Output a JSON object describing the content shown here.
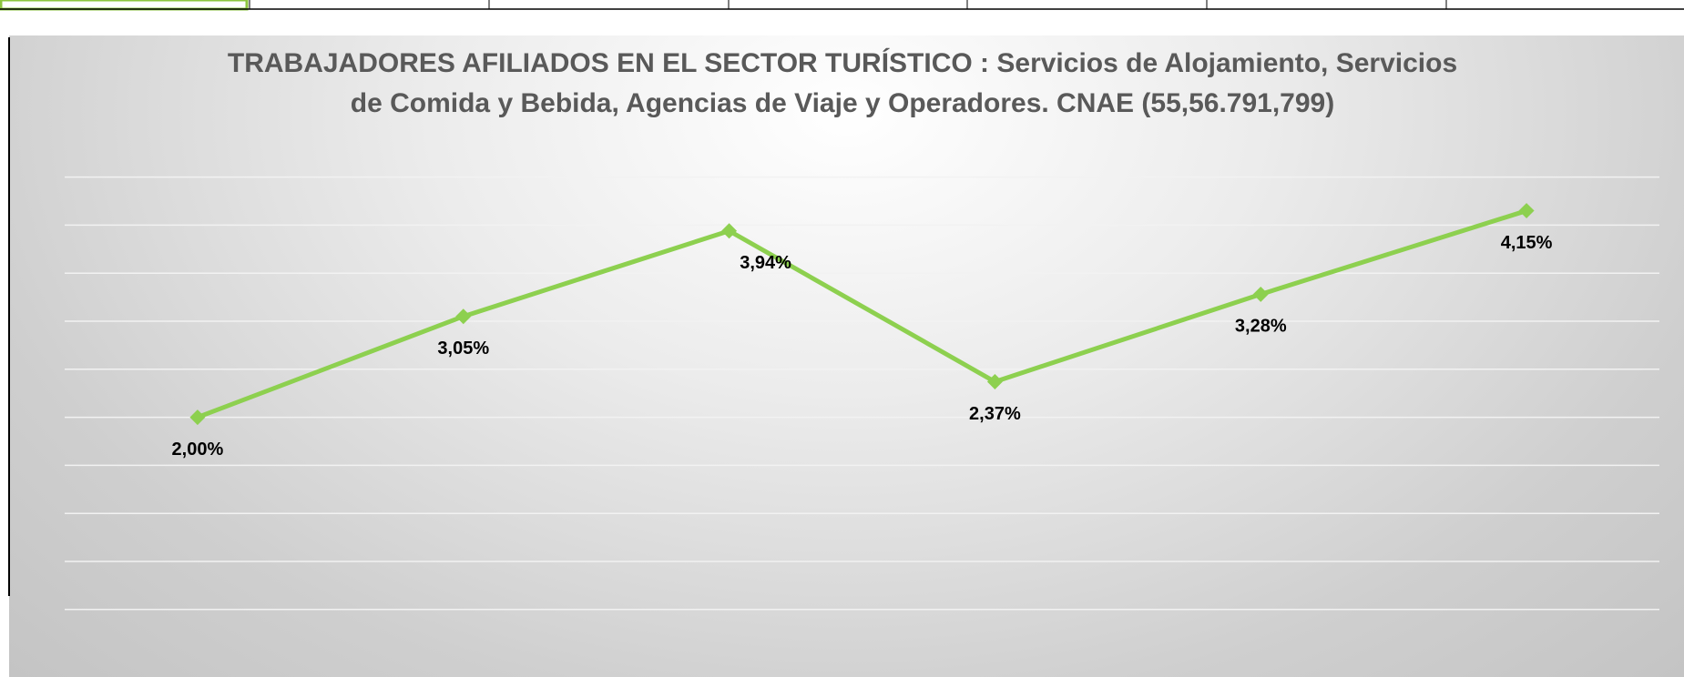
{
  "chart_data": {
    "type": "line",
    "title": "TRABAJADORES AFILIADOS EN EL SECTOR TURÍSTICO : Servicios de Alojamiento, Servicios de Comida y Bebida, Agencias de Viaje y Operadores. CNAE (55,56.791,799)",
    "categories": [
      null,
      null,
      null,
      null,
      null,
      null
    ],
    "series": [
      {
        "name": null,
        "color": "#8dd04f",
        "values": [
          2.0,
          3.05,
          3.94,
          2.37,
          3.28,
          4.15
        ],
        "value_labels": [
          "2,00%",
          "3,05%",
          "3,94%",
          "2,37%",
          "3,28%",
          "4,15%"
        ]
      }
    ],
    "ylim": [
      0,
      4.5
    ],
    "yticks": [
      0,
      0.5,
      1,
      1.5,
      2,
      2.5,
      3,
      3.5,
      4,
      4.5
    ],
    "grid": true
  }
}
